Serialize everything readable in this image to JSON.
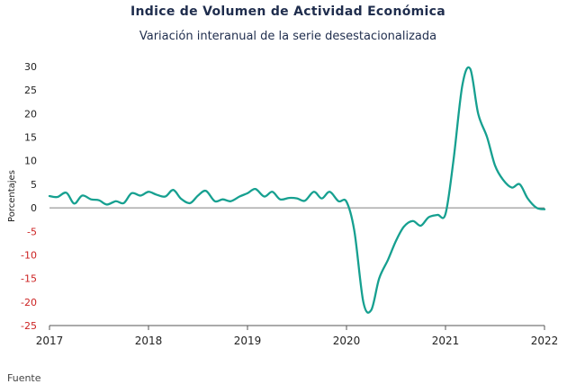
{
  "chart_data": {
    "type": "line",
    "title": "Indice de Volumen de  Actividad Económica",
    "subtitle": "Variación interanual de la serie desestacionalizada",
    "xlabel": "",
    "ylabel": "Porcentajes",
    "ylim": [
      -25,
      30
    ],
    "xlim": [
      2017,
      2022
    ],
    "y_ticks": [
      "30",
      "25",
      "20",
      "15",
      "10",
      "5",
      "0",
      "-5",
      "-10",
      "-15",
      "-20",
      "-25"
    ],
    "y_tick_values": [
      30,
      25,
      20,
      15,
      10,
      5,
      0,
      -5,
      -10,
      -15,
      -20,
      -25
    ],
    "x_ticks": [
      "2017",
      "2018",
      "2019",
      "2020",
      "2021",
      "2022"
    ],
    "x_tick_values": [
      2017,
      2018,
      2019,
      2020,
      2021,
      2022
    ],
    "grid": false,
    "legend": "none",
    "colors": {
      "line": "#16a090",
      "zero_line": "#808080",
      "positive_tick": "#222222",
      "negative_tick": "#cc2222",
      "axis": "#555555"
    },
    "series": [
      {
        "x": [
          2017.0,
          2017.08,
          2017.17,
          2017.25,
          2017.33,
          2017.42,
          2017.5,
          2017.58,
          2017.67,
          2017.75,
          2017.83,
          2017.92,
          2018.0,
          2018.08,
          2018.17,
          2018.25,
          2018.33,
          2018.42,
          2018.5,
          2018.58,
          2018.67,
          2018.75,
          2018.83,
          2018.92,
          2019.0,
          2019.08,
          2019.17,
          2019.25,
          2019.33,
          2019.42,
          2019.5,
          2019.58,
          2019.67,
          2019.75,
          2019.83,
          2019.92,
          2020.0,
          2020.08,
          2020.17,
          2020.25,
          2020.33,
          2020.42,
          2020.5,
          2020.58,
          2020.67,
          2020.75,
          2020.83,
          2020.92,
          2021.0,
          2021.08,
          2021.17,
          2021.25,
          2021.33,
          2021.42,
          2021.5,
          2021.58,
          2021.67,
          2021.75,
          2021.83,
          2021.92,
          2022.0
        ],
        "values": [
          2.5,
          2.3,
          3.2,
          0.9,
          2.6,
          1.8,
          1.6,
          0.7,
          1.4,
          1.0,
          3.1,
          2.6,
          3.4,
          2.8,
          2.4,
          3.8,
          1.9,
          1.0,
          2.6,
          3.6,
          1.4,
          1.8,
          1.4,
          2.4,
          3.1,
          4.0,
          2.4,
          3.4,
          1.8,
          2.1,
          2.0,
          1.5,
          3.4,
          2.0,
          3.4,
          1.4,
          1.3,
          -5.0,
          -20.0,
          -21.7,
          -15.0,
          -11.0,
          -7.0,
          -4.0,
          -2.8,
          -3.8,
          -2.0,
          -1.5,
          -1.3,
          10.0,
          26.0,
          29.5,
          20.0,
          15.0,
          9.0,
          6.0,
          4.3,
          5.0,
          2.0,
          0.0,
          -0.3
        ]
      }
    ]
  },
  "footer": "Fuente"
}
